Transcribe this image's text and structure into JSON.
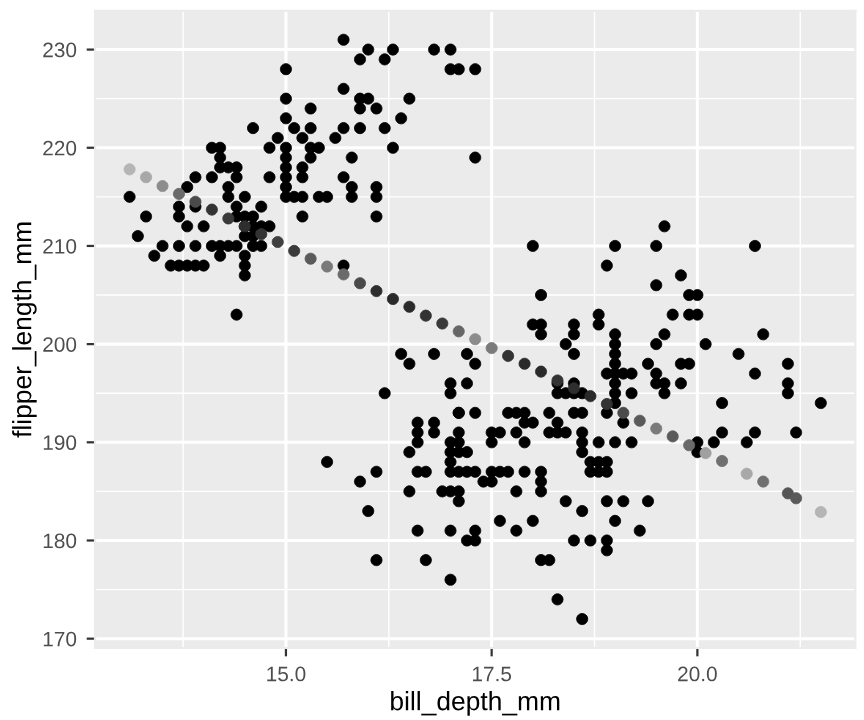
{
  "chart_data": {
    "type": "scatter",
    "xlabel": "bill_depth_mm",
    "ylabel": "flipper_length_mm",
    "xlim": [
      12.68,
      21.92
    ],
    "ylim": [
      169.05,
      233.95
    ],
    "xticks": [
      {
        "value": 15,
        "label": "15.0"
      },
      {
        "value": 17.5,
        "label": "17.5"
      },
      {
        "value": 20,
        "label": "20.0"
      }
    ],
    "yticks": [
      170,
      180,
      190,
      200,
      210,
      220,
      230
    ],
    "grid": true,
    "marker": "circle",
    "series": [
      {
        "color": "#000000",
        "x": [
          13.1,
          13.2,
          13.3,
          13.4,
          13.5,
          13.6,
          13.7,
          13.8,
          13.9,
          14.0,
          13.7,
          13.9,
          13.7,
          13.7,
          13.8,
          14.0,
          13.9,
          13.9,
          13.8,
          14.1,
          14.1,
          14.2,
          14.3,
          14.4,
          14.2,
          14.1,
          14.2,
          14.2,
          14.2,
          14.3,
          14.4,
          14.3,
          14.3,
          14.4,
          14.4,
          14.4,
          14.5,
          14.5,
          14.6,
          14.5,
          14.6,
          14.7,
          14.5,
          14.6,
          14.5,
          14.5,
          14.5,
          14.6,
          14.7,
          14.7,
          14.6,
          14.4,
          14.8,
          14.8,
          14.8,
          14.9,
          15.0,
          15.0,
          15.0,
          15.0,
          15.0,
          15.0,
          15.0,
          15.0,
          15.0,
          15.1,
          15.2,
          15.1,
          15.2,
          15.2,
          15.2,
          15.2,
          15.3,
          15.3,
          15.3,
          15.3,
          15.4,
          15.4,
          15.5,
          15.6,
          15.7,
          15.7,
          15.7,
          15.7,
          15.7,
          15.8,
          15.8,
          15.8,
          15.9,
          15.9,
          15.9,
          15.9,
          16.0,
          16.0,
          16.1,
          16.1,
          16.1,
          16.1,
          16.2,
          16.2,
          16.3,
          16.3,
          16.4,
          16.5,
          16.8,
          17.0,
          17.0,
          17.1,
          17.3,
          17.3,
          18.0,
          18.1,
          18.0,
          18.1,
          18.1,
          18.5,
          18.5,
          18.4,
          18.8,
          18.8,
          18.9,
          19.0,
          19.0,
          19.0,
          19.5,
          19.6,
          19.5,
          19.8,
          19.7,
          19.9,
          20.0,
          19.9,
          20.0,
          19.6,
          19.5,
          20.1,
          20.7,
          20.8,
          20.5,
          16.4,
          16.5,
          16.8,
          17.2,
          16.2,
          17.0,
          17.0,
          17.2,
          17.1,
          16.6,
          16.6,
          16.6,
          16.8,
          16.8,
          16.5,
          17.0,
          17.0,
          17.0,
          17.1,
          17.1,
          17.2,
          15.5,
          16.1,
          16.6,
          16.7,
          15.9,
          16.5,
          16.9,
          17.0,
          17.1,
          17.1,
          16.0,
          16.6,
          17.0,
          17.2,
          16.1,
          16.7,
          17.0,
          17.3,
          18.5,
          19.0,
          19.0,
          19.4,
          19.5,
          19.5,
          19.8,
          19.9,
          20.7,
          21.1,
          21.1,
          21.1,
          21.5,
          21.2,
          20.7,
          20.6,
          20.3,
          20.3,
          20.2,
          20.0,
          20.0,
          19.8,
          19.6,
          19.6,
          17.1,
          17.3,
          17.1,
          17.0,
          17.1,
          17.2,
          17.3,
          17.5,
          17.5,
          17.6,
          17.5,
          17.6,
          17.7,
          17.8,
          17.9,
          17.9,
          18.0,
          17.8,
          17.9,
          17.7,
          17.9,
          18.1,
          17.8,
          18.1,
          18.1,
          18.2,
          18.3,
          18.2,
          18.3,
          18.3,
          18.3,
          18.4,
          18.5,
          18.6,
          18.5,
          18.6,
          18.5,
          18.6,
          18.6,
          18.6,
          18.4,
          18.7,
          18.8,
          18.9,
          18.7,
          18.8,
          18.9,
          18.8,
          19.0,
          19.1,
          18.9,
          19.2,
          19.0,
          19.0,
          19.0,
          19.2,
          18.9,
          19.1,
          19.0,
          19.2,
          18.4,
          18.9,
          19.1,
          19.4,
          18.6,
          19.0,
          19.3,
          18.5,
          18.7,
          18.9,
          18.9,
          17.6,
          17.8,
          18.0,
          17.3,
          17.3,
          18.1,
          18.2,
          18.3,
          18.6,
          17.4,
          17.5
        ],
        "values": [
          215,
          211,
          213,
          209,
          210,
          208,
          208,
          208,
          208,
          208,
          210,
          210,
          214,
          213,
          212,
          212,
          214,
          217,
          216,
          217,
          210,
          210,
          210,
          210,
          209,
          220,
          220,
          219,
          218,
          218,
          218,
          216,
          215,
          217,
          214,
          213,
          215,
          213,
          213,
          212,
          212,
          212,
          211,
          211,
          209,
          208,
          207,
          210,
          210,
          214,
          222,
          203,
          212,
          217,
          220,
          221,
          220,
          219,
          218,
          217,
          216,
          215,
          228,
          225,
          223,
          215,
          215,
          222,
          221,
          213,
          218,
          217,
          224,
          222,
          220,
          219,
          220,
          215,
          215,
          221,
          231,
          226,
          222,
          217,
          208,
          219,
          216,
          215,
          229,
          225,
          224,
          222,
          230,
          225,
          224,
          216,
          215,
          213,
          229,
          222,
          230,
          220,
          223,
          225,
          230,
          230,
          228,
          228,
          228,
          219,
          210,
          205,
          202,
          202,
          201,
          202,
          201,
          200,
          203,
          202,
          208,
          210,
          201,
          200,
          210,
          212,
          206,
          207,
          203,
          205,
          205,
          203,
          203,
          201,
          200,
          200,
          210,
          201,
          199,
          199,
          198,
          199,
          199,
          195,
          196,
          195,
          196,
          193,
          192,
          191,
          190,
          192,
          191,
          189,
          190,
          189,
          188,
          191,
          190,
          189,
          188,
          187,
          187,
          187,
          186,
          185,
          185,
          185,
          185,
          184,
          183,
          181,
          181,
          180,
          178,
          178,
          176,
          198,
          199,
          199,
          198,
          198,
          197,
          196,
          198,
          198,
          197,
          198,
          196,
          195,
          194,
          191,
          191,
          190,
          194,
          191,
          190,
          190,
          189,
          196,
          196,
          195,
          193,
          193,
          189,
          187,
          187,
          187,
          187,
          191,
          190,
          191,
          187,
          187,
          193,
          193,
          193,
          192,
          192,
          191,
          190,
          187,
          187,
          187,
          185,
          186,
          185,
          193,
          192,
          191,
          191,
          196,
          195,
          195,
          195,
          195,
          196,
          193,
          193,
          191,
          190,
          189,
          191,
          188,
          188,
          188,
          187,
          187,
          187,
          190,
          197,
          197,
          197,
          197,
          196,
          195,
          194,
          195,
          193,
          192,
          190,
          190,
          184,
          184,
          184,
          184,
          183,
          182,
          181,
          180,
          180,
          180,
          179,
          182,
          181,
          182,
          181,
          180,
          178,
          178,
          174,
          172,
          186,
          186
        ]
      },
      {
        "x": [
          13.1,
          13.3,
          13.5,
          13.7,
          13.9,
          14.1,
          14.3,
          14.5,
          14.7,
          14.9,
          15.1,
          15.3,
          15.5,
          15.7,
          15.9,
          16.1,
          16.3,
          16.5,
          16.7,
          16.9,
          17.1,
          17.3,
          17.5,
          17.7,
          17.9,
          18.1,
          18.3,
          18.5,
          18.7,
          18.9,
          19.1,
          19.3,
          19.5,
          19.7,
          19.9,
          20.1,
          20.3,
          20.6,
          20.8,
          21.1,
          21.2,
          21.5
        ],
        "values": [
          217.8,
          217.0,
          216.1,
          215.3,
          214.5,
          213.7,
          212.8,
          212.0,
          211.2,
          210.4,
          209.5,
          208.7,
          207.9,
          207.1,
          206.2,
          205.4,
          204.6,
          203.8,
          202.9,
          202.1,
          201.3,
          200.5,
          199.6,
          198.8,
          198.0,
          197.2,
          196.3,
          195.5,
          194.7,
          193.9,
          193.0,
          192.2,
          191.4,
          190.6,
          189.7,
          188.9,
          188.1,
          186.8,
          186.0,
          184.8,
          184.3,
          182.9
        ],
        "colors": [
          "#b5b5b5",
          "#a8a8a8",
          "#8c8c8c",
          "#6a6a6a",
          "#4a4a4a",
          "#333333",
          "#3a3a3a",
          "#2e2e2e",
          "#333333",
          "#404040",
          "#3a3a3a",
          "#5a5a5a",
          "#7a7a7a",
          "#6a6a6a",
          "#4a4a4a",
          "#2e2e2e",
          "#2a2a2a",
          "#2a2a2a",
          "#333333",
          "#3a3a3a",
          "#666666",
          "#8c8c8c",
          "#7a7a7a",
          "#333333",
          "#2a2a2a",
          "#2a2a2a",
          "#333333",
          "#2e2e2e",
          "#2a2a2a",
          "#333333",
          "#4a4a4a",
          "#5a5a5a",
          "#7a7a7a",
          "#5a5a5a",
          "#6a6a6a",
          "#a0a0a0",
          "#707070",
          "#a8a8a8",
          "#707070",
          "#555555",
          "#5a5a5a",
          "#b5b5b5"
        ]
      }
    ]
  }
}
